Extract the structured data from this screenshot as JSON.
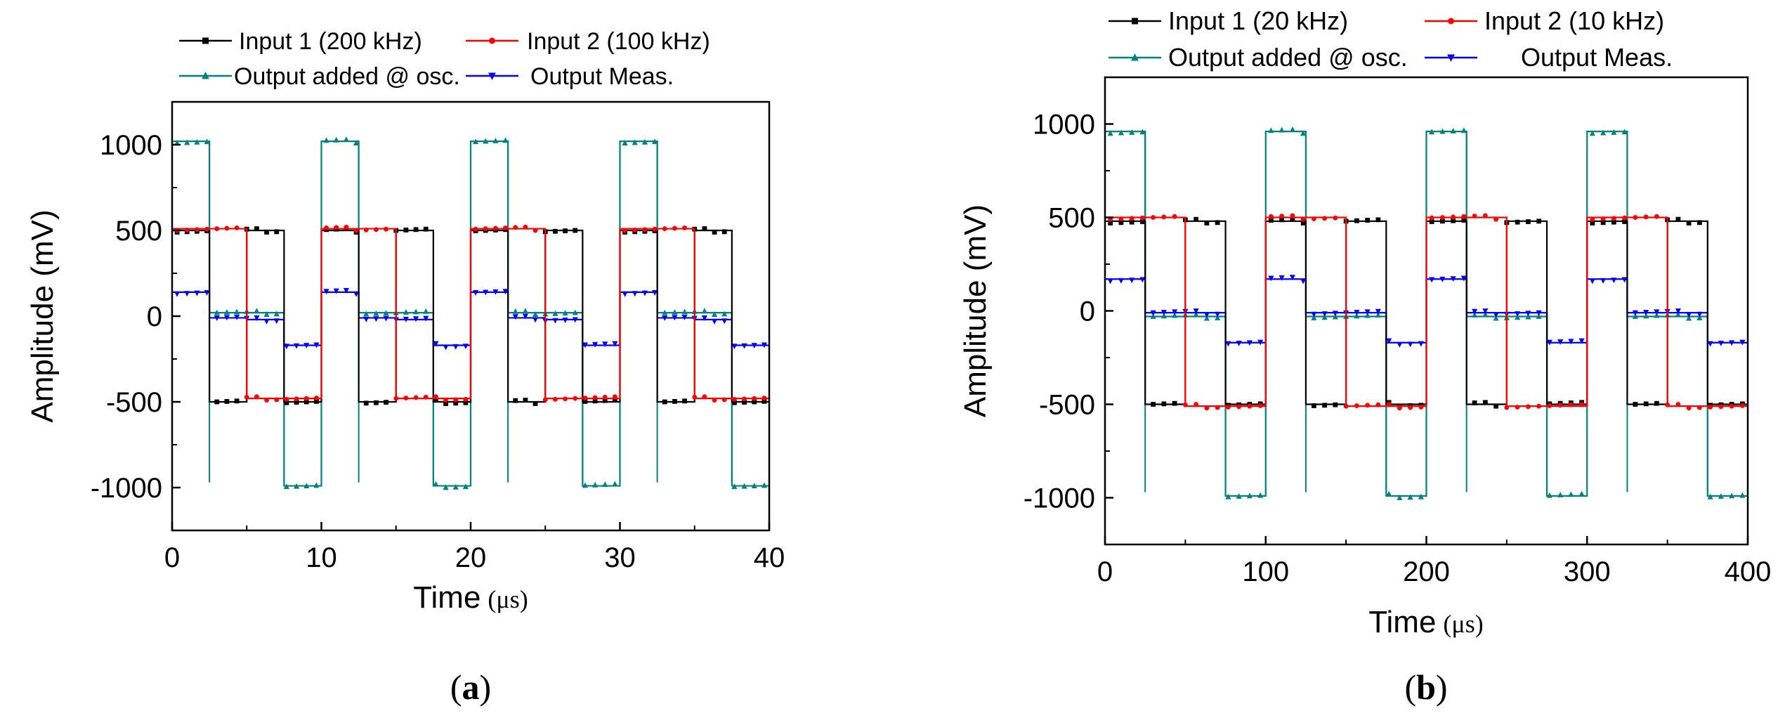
{
  "chart_data": [
    {
      "type": "line",
      "panel_label": "(a)",
      "xlabel": "Time",
      "xunit": "(μs)",
      "ylabel": "Amplitude (mV)",
      "xlim": [
        0,
        40
      ],
      "ylim": [
        -1250,
        1250
      ],
      "xticks": [
        0,
        10,
        20,
        30,
        40
      ],
      "yticks": [
        1000,
        500,
        0,
        -500,
        -1000
      ],
      "legend_position": "top",
      "series": [
        {
          "name": "Input 1 (200 kHz)",
          "color": "#000000",
          "marker": "square",
          "frequency_khz": 200,
          "steps": [
            [
              0,
              2.5,
              500
            ],
            [
              2.5,
              5,
              -500
            ],
            [
              5,
              7.5,
              500
            ],
            [
              7.5,
              10,
              -500
            ],
            [
              10,
              12.5,
              500
            ],
            [
              12.5,
              15,
              -500
            ],
            [
              15,
              17.5,
              500
            ],
            [
              17.5,
              20,
              -500
            ],
            [
              20,
              22.5,
              500
            ],
            [
              22.5,
              25,
              -500
            ],
            [
              25,
              27.5,
              500
            ],
            [
              27.5,
              30,
              -500
            ],
            [
              30,
              32.5,
              500
            ],
            [
              32.5,
              35,
              -500
            ],
            [
              35,
              37.5,
              500
            ],
            [
              37.5,
              40,
              -500
            ]
          ]
        },
        {
          "name": "Input 2 (100 kHz)",
          "color": "#ff0000",
          "marker": "circle",
          "frequency_khz": 100,
          "steps": [
            [
              0,
              5,
              510
            ],
            [
              5,
              10,
              -480
            ],
            [
              10,
              15,
              510
            ],
            [
              15,
              20,
              -480
            ],
            [
              20,
              25,
              510
            ],
            [
              25,
              30,
              -480
            ],
            [
              30,
              35,
              510
            ],
            [
              35,
              40,
              -480
            ]
          ]
        },
        {
          "name": "Output added @ osc.",
          "color": "#008080",
          "marker": "triangle-up",
          "steps": [
            [
              0,
              2.5,
              1020
            ],
            [
              2.5,
              5,
              20
            ],
            [
              5,
              7.5,
              20
            ],
            [
              7.5,
              10,
              -990
            ],
            [
              10,
              12.5,
              1020
            ],
            [
              12.5,
              15,
              20
            ],
            [
              15,
              17.5,
              20
            ],
            [
              17.5,
              20,
              -990
            ],
            [
              20,
              22.5,
              1020
            ],
            [
              22.5,
              25,
              20
            ],
            [
              25,
              27.5,
              20
            ],
            [
              27.5,
              30,
              -990
            ],
            [
              30,
              32.5,
              1020
            ],
            [
              32.5,
              35,
              20
            ],
            [
              35,
              37.5,
              20
            ],
            [
              37.5,
              40,
              -990
            ]
          ]
        },
        {
          "name": "Output Meas.",
          "color": "#0000ff",
          "marker": "triangle-down",
          "steps": [
            [
              0,
              2.5,
              140
            ],
            [
              2.5,
              5,
              -10
            ],
            [
              5,
              7.5,
              -20
            ],
            [
              7.5,
              10,
              -170
            ],
            [
              10,
              12.5,
              140
            ],
            [
              12.5,
              15,
              -10
            ],
            [
              15,
              17.5,
              -20
            ],
            [
              17.5,
              20,
              -170
            ],
            [
              20,
              22.5,
              140
            ],
            [
              22.5,
              25,
              -10
            ],
            [
              25,
              27.5,
              -20
            ],
            [
              27.5,
              30,
              -170
            ],
            [
              30,
              32.5,
              140
            ],
            [
              32.5,
              35,
              -10
            ],
            [
              35,
              37.5,
              -20
            ],
            [
              37.5,
              40,
              -170
            ]
          ]
        }
      ]
    },
    {
      "type": "line",
      "panel_label": "(b)",
      "xlabel": "Time",
      "xunit": "(μs)",
      "ylabel": "Amplitude (mV)",
      "xlim": [
        0,
        400
      ],
      "ylim": [
        -1250,
        1250
      ],
      "xticks": [
        0,
        100,
        200,
        300,
        400
      ],
      "yticks": [
        1000,
        500,
        0,
        -500,
        -1000
      ],
      "legend_position": "top",
      "series": [
        {
          "name": "Input 1 (20 kHz)",
          "color": "#000000",
          "marker": "square",
          "frequency_khz": 20,
          "steps": [
            [
              0,
              25,
              480
            ],
            [
              25,
              50,
              -500
            ],
            [
              50,
              75,
              480
            ],
            [
              75,
              100,
              -500
            ],
            [
              100,
              125,
              480
            ],
            [
              125,
              150,
              -500
            ],
            [
              150,
              175,
              480
            ],
            [
              175,
              200,
              -500
            ],
            [
              200,
              225,
              480
            ],
            [
              225,
              250,
              -500
            ],
            [
              250,
              275,
              480
            ],
            [
              275,
              300,
              -500
            ],
            [
              300,
              325,
              480
            ],
            [
              325,
              350,
              -500
            ],
            [
              350,
              375,
              480
            ],
            [
              375,
              400,
              -500
            ]
          ]
        },
        {
          "name": "Input 2 (10 kHz)",
          "color": "#ff0000",
          "marker": "circle",
          "frequency_khz": 10,
          "steps": [
            [
              0,
              50,
              500
            ],
            [
              50,
              100,
              -510
            ],
            [
              100,
              150,
              500
            ],
            [
              150,
              200,
              -510
            ],
            [
              200,
              250,
              500
            ],
            [
              250,
              300,
              -510
            ],
            [
              300,
              350,
              500
            ],
            [
              350,
              400,
              -510
            ]
          ]
        },
        {
          "name": "Output added @ osc.",
          "color": "#008080",
          "marker": "triangle-up",
          "steps": [
            [
              0,
              25,
              960
            ],
            [
              25,
              50,
              -30
            ],
            [
              50,
              75,
              -30
            ],
            [
              75,
              100,
              -990
            ],
            [
              100,
              125,
              960
            ],
            [
              125,
              150,
              -30
            ],
            [
              150,
              175,
              -30
            ],
            [
              175,
              200,
              -990
            ],
            [
              200,
              225,
              960
            ],
            [
              225,
              250,
              -30
            ],
            [
              250,
              275,
              -30
            ],
            [
              275,
              300,
              -990
            ],
            [
              300,
              325,
              960
            ],
            [
              325,
              350,
              -30
            ],
            [
              350,
              375,
              -30
            ],
            [
              375,
              400,
              -990
            ]
          ]
        },
        {
          "name": "Output Meas.",
          "color": "#0000ff",
          "marker": "triangle-down",
          "steps": [
            [
              0,
              25,
              170
            ],
            [
              25,
              50,
              -10
            ],
            [
              50,
              75,
              -10
            ],
            [
              75,
              100,
              -170
            ],
            [
              100,
              125,
              170
            ],
            [
              125,
              150,
              -10
            ],
            [
              150,
              175,
              -10
            ],
            [
              175,
              200,
              -170
            ],
            [
              200,
              225,
              170
            ],
            [
              225,
              250,
              -10
            ],
            [
              250,
              275,
              -10
            ],
            [
              275,
              300,
              -170
            ],
            [
              300,
              325,
              170
            ],
            [
              325,
              350,
              -10
            ],
            [
              350,
              375,
              -10
            ],
            [
              375,
              400,
              -170
            ]
          ]
        }
      ]
    }
  ]
}
